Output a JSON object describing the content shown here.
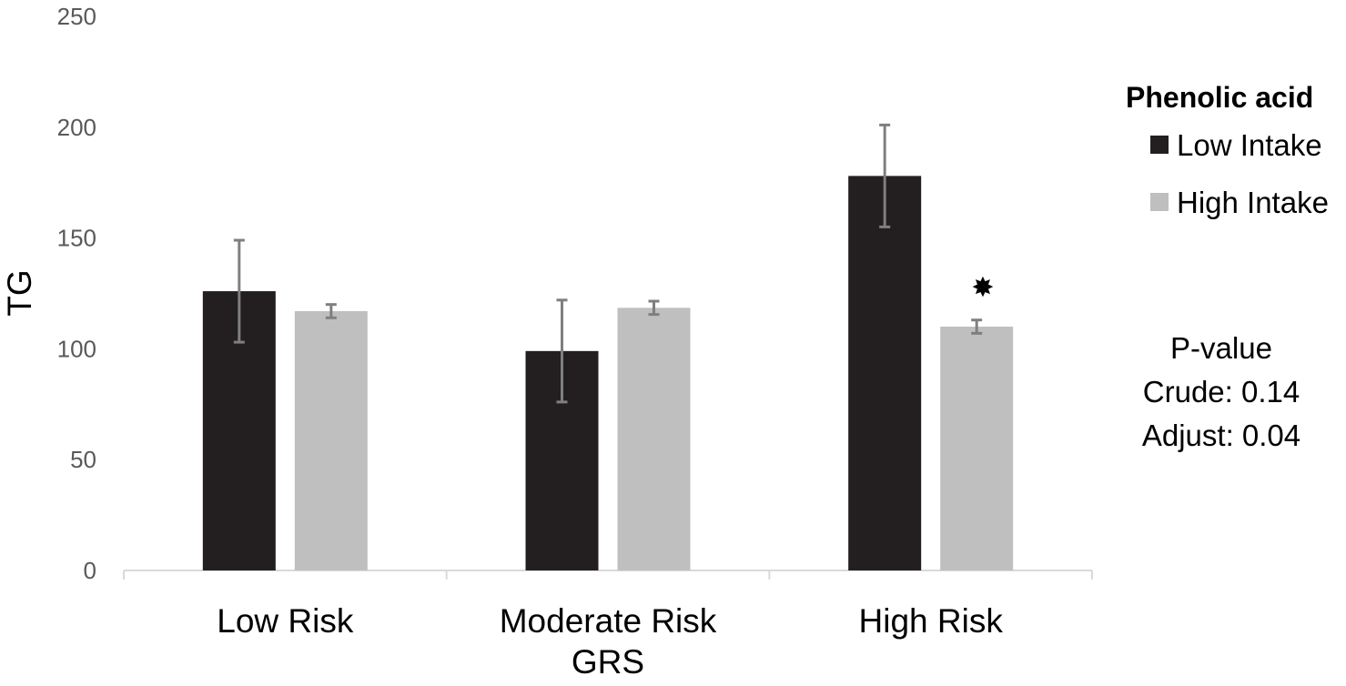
{
  "chart_data": {
    "type": "bar",
    "title": "",
    "xlabel": "GRS",
    "ylabel": "TG",
    "ylim": [
      0,
      250
    ],
    "yticks": [
      0,
      50,
      100,
      150,
      200,
      250
    ],
    "grid": false,
    "categories": [
      "Low Risk",
      "Moderate Risk",
      "High Risk"
    ],
    "series": [
      {
        "name": "Low Intake",
        "color": "#231f20",
        "values": [
          126,
          99,
          178
        ],
        "error": [
          23,
          23,
          23
        ]
      },
      {
        "name": "High Intake",
        "color": "#bfbfbf",
        "values": [
          117,
          118.5,
          110
        ],
        "error": [
          3,
          3,
          3
        ]
      }
    ],
    "legend": {
      "title": "Phenolic acid",
      "position": "top-right"
    },
    "annotations": [
      {
        "type": "significance-star",
        "symbol": "✸",
        "category": "High Risk",
        "series": "High Intake"
      }
    ],
    "pvalue": {
      "title": "P-value",
      "crude": "Crude: 0.14",
      "adjust": "Adjust: 0.04"
    }
  }
}
